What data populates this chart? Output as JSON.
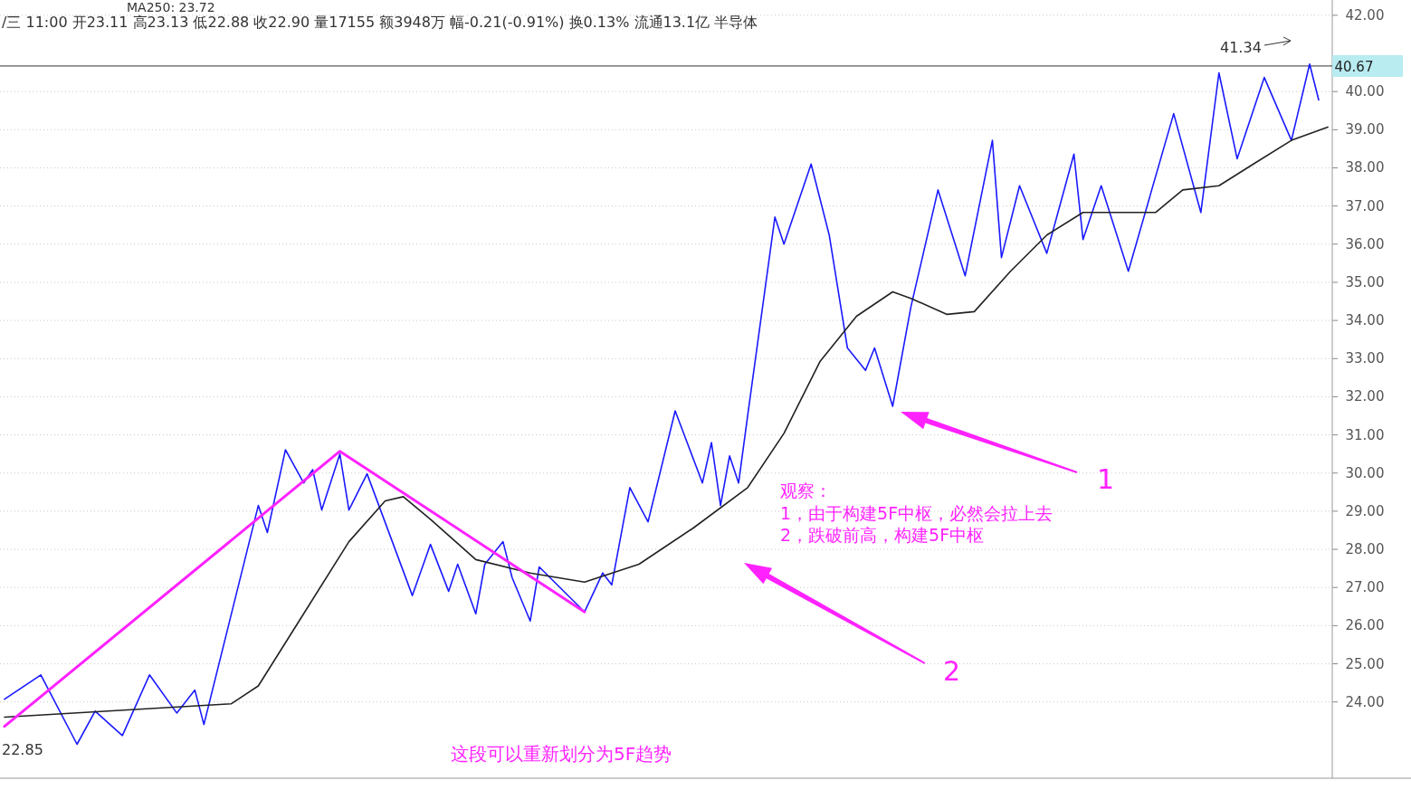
{
  "chart_data": {
    "type": "line",
    "categories": [
      null,
      null,
      null,
      null,
      null,
      null,
      null,
      null,
      null,
      null,
      null,
      null,
      null,
      null,
      null,
      null,
      null,
      null,
      null,
      null,
      null,
      null,
      null,
      null,
      null,
      null,
      null,
      null,
      null,
      null,
      null,
      null,
      null,
      null,
      null,
      null,
      null,
      null,
      null,
      null,
      null,
      null,
      null,
      null,
      null,
      null,
      null,
      null,
      null,
      null,
      null,
      null,
      null,
      null,
      null,
      null,
      null,
      null,
      null,
      null,
      null,
      null,
      null,
      null,
      null,
      null,
      null,
      null,
      null,
      null,
      null,
      null,
      null,
      null,
      null,
      null,
      null,
      null,
      null,
      null,
      null,
      null,
      null,
      null,
      null,
      null,
      null,
      null,
      null,
      null,
      null,
      null,
      null,
      null,
      null,
      null,
      null,
      null,
      null,
      null,
      null,
      null,
      null,
      null,
      null,
      null,
      null,
      null,
      null,
      null,
      null,
      null,
      null,
      null,
      null,
      null,
      null,
      null,
      null,
      null,
      null,
      null,
      null,
      null,
      null,
      null,
      null,
      null,
      null,
      null,
      null,
      null,
      null,
      null,
      null,
      null,
      null,
      null,
      null,
      null,
      null,
      null,
      null,
      null,
      null,
      null,
      null
    ],
    "series": [
      {
        "type": "line",
        "color": "#1a1aff",
        "values": [
          24.07,
          null,
          null,
          null,
          24.71,
          null,
          null,
          null,
          22.89,
          null,
          23.76,
          null,
          null,
          23.12,
          null,
          null,
          24.71,
          null,
          null,
          23.71,
          null,
          24.31,
          23.41,
          null,
          null,
          null,
          null,
          null,
          29.15,
          28.44,
          null,
          30.61,
          null,
          29.74,
          30.09,
          29.03,
          null,
          30.5,
          29.03,
          null,
          29.98,
          null,
          null,
          null,
          null,
          26.79,
          null,
          28.13,
          null,
          26.9,
          27.61,
          null,
          26.31,
          27.61,
          null,
          28.2,
          27.26,
          null,
          26.12,
          27.54,
          null,
          null,
          null,
          null,
          26.36,
          null,
          27.38,
          27.07,
          null,
          29.62,
          null,
          28.72,
          null,
          null,
          31.63,
          null,
          null,
          29.74,
          30.8,
          29.15,
          30.45,
          29.74,
          31.51,
          null,
          null,
          36.71,
          36.0,
          null,
          null,
          38.1,
          null,
          36.24,
          null,
          33.28,
          null,
          32.69,
          33.28,
          null,
          31.75,
          null,
          34.35,
          null,
          null,
          37.42,
          null,
          null,
          35.17,
          null,
          null,
          38.72,
          35.65,
          null,
          37.53,
          null,
          null,
          35.76,
          null,
          null,
          38.36,
          36.12,
          null,
          37.53,
          null,
          null,
          35.29,
          null,
          null,
          null,
          null,
          39.42,
          null,
          null,
          36.83,
          null,
          40.49,
          null,
          38.24,
          null,
          null,
          40.37,
          null,
          null,
          38.72,
          null,
          40.72,
          39.78,
          null
        ]
      },
      {
        "type": "line",
        "color": "#222222",
        "values": [
          23.6,
          null,
          null,
          null,
          null,
          null,
          null,
          null,
          null,
          null,
          null,
          null,
          null,
          null,
          null,
          null,
          null,
          null,
          null,
          null,
          null,
          null,
          null,
          null,
          null,
          23.95,
          null,
          null,
          24.42,
          null,
          null,
          null,
          null,
          26.31,
          null,
          null,
          null,
          null,
          28.2,
          null,
          null,
          null,
          29.27,
          null,
          29.38,
          null,
          null,
          28.79,
          null,
          null,
          null,
          null,
          27.73,
          null,
          null,
          null,
          null,
          null,
          27.38,
          null,
          null,
          null,
          null,
          null,
          27.14,
          null,
          null,
          null,
          null,
          null,
          27.61,
          null,
          null,
          null,
          null,
          null,
          28.56,
          null,
          null,
          null,
          null,
          null,
          29.62,
          null,
          null,
          null,
          31.04,
          null,
          null,
          null,
          32.93,
          null,
          null,
          null,
          34.11,
          null,
          null,
          null,
          34.75,
          null,
          34.58,
          null,
          null,
          null,
          34.16,
          null,
          null,
          34.23,
          null,
          null,
          null,
          35.29,
          null,
          null,
          null,
          36.24,
          null,
          null,
          null,
          36.83,
          null,
          null,
          null,
          36.83,
          null,
          null,
          null,
          36.83,
          null,
          null,
          37.42,
          null,
          null,
          null,
          37.53,
          null,
          null,
          null,
          38.13,
          null,
          null,
          null,
          38.72,
          null,
          null,
          null,
          39.07
        ]
      },
      {
        "type": "line",
        "color": "#ff22ff",
        "values": [
          23.36,
          null,
          null,
          null,
          null,
          null,
          null,
          null,
          null,
          null,
          null,
          null,
          null,
          null,
          null,
          null,
          null,
          null,
          null,
          null,
          null,
          null,
          null,
          null,
          null,
          null,
          null,
          null,
          null,
          null,
          null,
          null,
          null,
          null,
          null,
          null,
          null,
          30.57,
          null,
          null,
          null,
          null,
          null,
          null,
          null,
          null,
          null,
          null,
          null,
          null,
          null,
          null,
          null,
          null,
          null,
          null,
          null,
          null,
          null,
          null,
          null,
          null,
          null,
          null,
          26.36,
          null,
          null,
          null,
          null,
          null,
          null,
          null,
          null,
          null,
          null,
          null,
          null,
          null,
          null,
          null,
          null,
          null,
          null,
          null,
          null,
          null,
          null,
          null,
          null,
          null,
          null,
          null,
          null,
          null,
          null,
          null,
          null,
          null,
          null,
          null,
          null,
          null,
          null,
          null,
          null,
          null,
          null,
          null,
          null,
          null,
          null,
          null,
          null,
          null,
          null,
          null,
          null,
          null,
          null,
          null,
          null,
          null,
          null,
          null,
          null,
          null,
          null,
          null,
          null,
          null,
          null,
          null,
          null,
          null,
          null,
          null,
          null,
          null,
          null,
          null,
          null,
          null,
          null,
          null,
          null,
          null,
          null
        ]
      }
    ],
    "ylim": [
      22.0,
      42.4
    ],
    "yticks": [
      {
        "value": 24,
        "label": "24.00"
      },
      {
        "value": 25,
        "label": "25.00"
      },
      {
        "value": 26,
        "label": "26.00"
      },
      {
        "value": 27,
        "label": "27.00"
      },
      {
        "value": 28,
        "label": "28.00"
      },
      {
        "value": 29,
        "label": "29.00"
      },
      {
        "value": 30,
        "label": "30.00"
      },
      {
        "value": 31,
        "label": "31.00"
      },
      {
        "value": 32,
        "label": "32.00"
      },
      {
        "value": 33,
        "label": "33.00"
      },
      {
        "value": 34,
        "label": "34.00"
      },
      {
        "value": 35,
        "label": "35.00"
      },
      {
        "value": 36,
        "label": "36.00"
      },
      {
        "value": 37,
        "label": "37.00"
      },
      {
        "value": 38,
        "label": "38.00"
      },
      {
        "value": 39,
        "label": "39.00"
      },
      {
        "value": 40,
        "label": "40.00"
      },
      {
        "value": 42,
        "label": "42.00"
      }
    ],
    "tick_labels": "y",
    "grid": "y",
    "ref_lines": [
      {
        "axis": "y",
        "value": 40.67,
        "label": "40.67",
        "color": "#333333"
      }
    ],
    "annotations": [
      "MA250: 23.72",
      "/三 11:00 开23.11 高23.13 低22.88 收22.90 量17155 额3948万 幅-0.21(-0.91%) 换0.13% 流通13.1亿 半导体",
      "41.34",
      "22.85",
      "观察：",
      "1，由于构建5F中枢，必然会拉上去",
      "2，跌破前高，构建5F中枢",
      "这段可以重新划分为5F趋势",
      "1",
      "2"
    ]
  }
}
